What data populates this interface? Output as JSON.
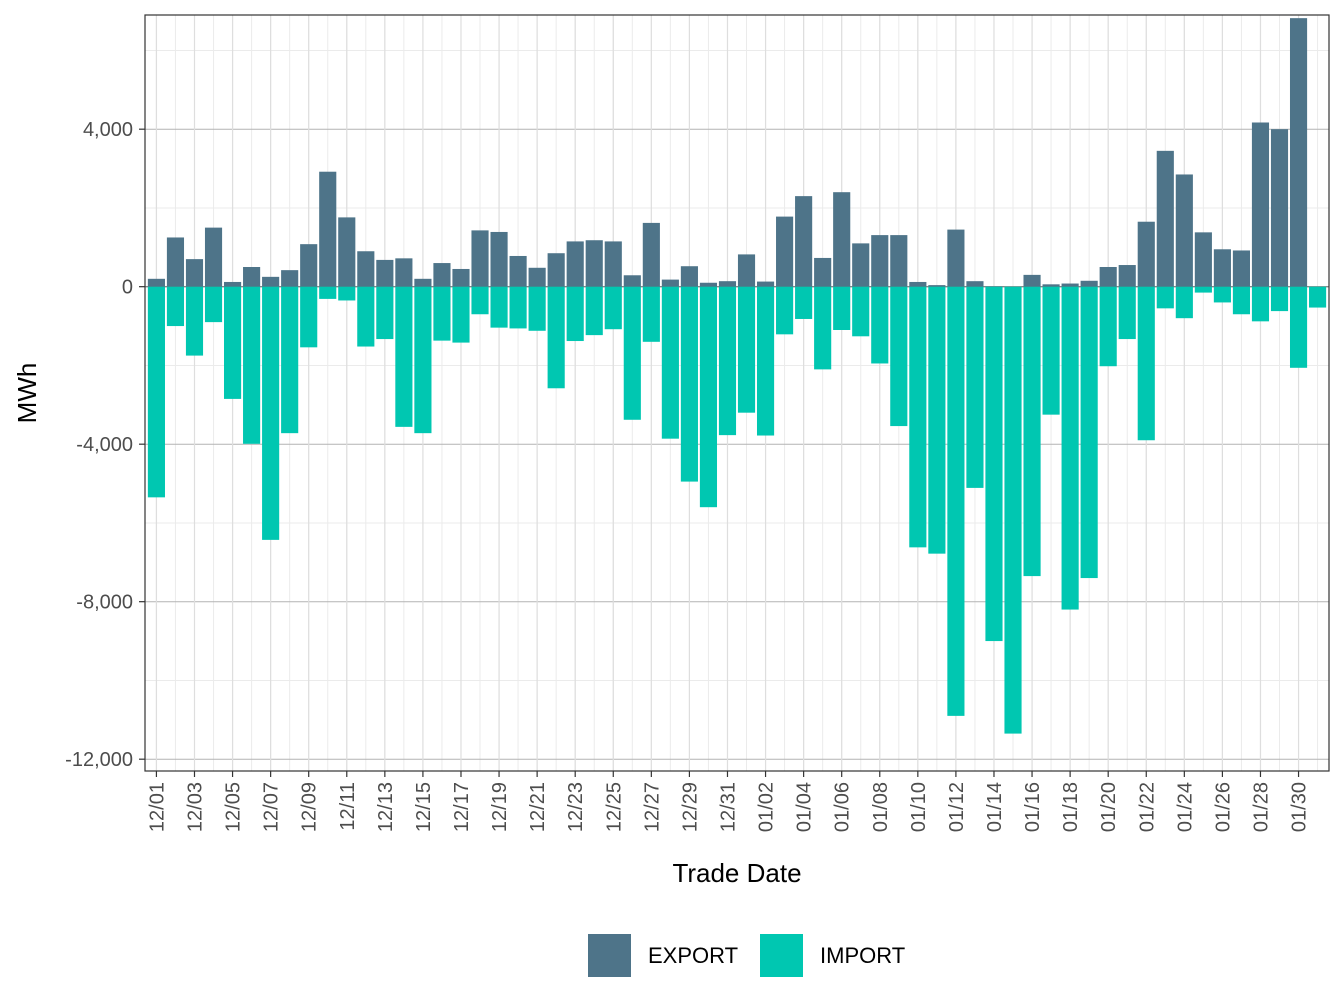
{
  "chart_data": {
    "type": "bar",
    "xlabel": "Trade Date",
    "ylabel": "MWh",
    "ylim": [
      -12300,
      6900
    ],
    "y_ticks": [
      4000,
      0,
      -4000,
      -8000,
      -12000
    ],
    "y_tick_labels": [
      "4,000",
      "0",
      "-4,000",
      "-8,000",
      "-12,000"
    ],
    "categories": [
      "12/01",
      "12/02",
      "12/03",
      "12/04",
      "12/05",
      "12/06",
      "12/07",
      "12/08",
      "12/09",
      "12/10",
      "12/11",
      "12/12",
      "12/13",
      "12/14",
      "12/15",
      "12/16",
      "12/17",
      "12/18",
      "12/19",
      "12/20",
      "12/21",
      "12/22",
      "12/23",
      "12/24",
      "12/25",
      "12/26",
      "12/27",
      "12/28",
      "12/29",
      "12/30",
      "12/31",
      "01/01",
      "01/02",
      "01/03",
      "01/04",
      "01/05",
      "01/06",
      "01/07",
      "01/08",
      "01/09",
      "01/10",
      "01/11",
      "01/12",
      "01/13",
      "01/14",
      "01/15",
      "01/16",
      "01/17",
      "01/18",
      "01/19",
      "01/20",
      "01/21",
      "01/22",
      "01/23",
      "01/24",
      "01/25",
      "01/26",
      "01/27",
      "01/28",
      "01/29",
      "01/30",
      "01/31"
    ],
    "x_tick_labels": [
      "12/01",
      "12/03",
      "12/05",
      "12/07",
      "12/09",
      "12/11",
      "12/13",
      "12/15",
      "12/17",
      "12/19",
      "12/21",
      "12/23",
      "12/25",
      "12/27",
      "12/29",
      "12/31",
      "01/02",
      "01/04",
      "01/06",
      "01/08",
      "01/10",
      "01/12",
      "01/14",
      "01/16",
      "01/18",
      "01/20",
      "01/22",
      "01/24",
      "01/26",
      "01/28",
      "01/30"
    ],
    "grid": true,
    "legend_position": "bottom",
    "stacked": true,
    "series": [
      {
        "name": "EXPORT",
        "color": "#4e7489",
        "values": [
          200,
          1250,
          700,
          1500,
          120,
          500,
          250,
          420,
          1080,
          2920,
          1760,
          900,
          680,
          720,
          200,
          600,
          450,
          1430,
          1390,
          780,
          480,
          850,
          1150,
          1180,
          1150,
          290,
          1620,
          180,
          520,
          100,
          140,
          820,
          130,
          1780,
          2300,
          730,
          2400,
          1100,
          1310,
          1310,
          120,
          40,
          1450,
          140,
          10,
          0,
          300,
          60,
          80,
          150,
          500,
          550,
          1650,
          3450,
          2850,
          1380,
          950,
          920,
          4170,
          4000,
          6820,
          0
        ]
      },
      {
        "name": "IMPORT",
        "color": "#00c7b1",
        "values": [
          -5350,
          -1000,
          -1750,
          -900,
          -2850,
          -3990,
          -6430,
          -3720,
          -1540,
          -310,
          -350,
          -1520,
          -1330,
          -3560,
          -3720,
          -1370,
          -1420,
          -700,
          -1040,
          -1060,
          -1120,
          -2580,
          -1380,
          -1230,
          -1080,
          -3380,
          -1400,
          -3860,
          -4950,
          -5600,
          -3770,
          -3200,
          -3780,
          -1210,
          -820,
          -2100,
          -1100,
          -1260,
          -1950,
          -3540,
          -6620,
          -6780,
          -10900,
          -5110,
          -9000,
          -11350,
          -7350,
          -3250,
          -8200,
          -7400,
          -2020,
          -1330,
          -3900,
          -550,
          -800,
          -150,
          -400,
          -700,
          -880,
          -620,
          -2060,
          -530
        ]
      }
    ]
  }
}
